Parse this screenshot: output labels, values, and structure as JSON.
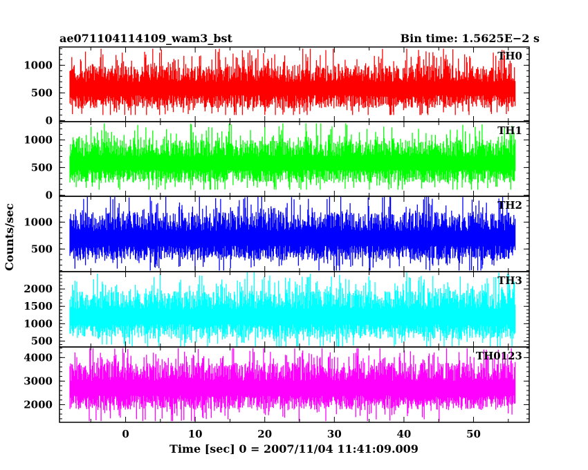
{
  "header": {
    "left_title": "ae071104114109_wam3_bst",
    "right_title": "Bin time: 1.5625E−2 s"
  },
  "chart_data": {
    "type": "line",
    "xlabel": "Time [sec] 0 = 2007/11/04 11:41:09.009",
    "ylabel": "Counts/sec",
    "xlim": [
      -9.5,
      58
    ],
    "xticks": [
      0,
      10,
      20,
      30,
      40,
      50
    ],
    "x_data_range": [
      -8,
      56
    ],
    "panels": [
      {
        "name": "TH0",
        "color": "#ff0000",
        "ylim": [
          -20,
          1330
        ],
        "yticks": [
          0,
          500,
          1000
        ],
        "approx_low": 100,
        "approx_high": 1300,
        "approx_mean": 580
      },
      {
        "name": "TH1",
        "color": "#00ff00",
        "ylim": [
          -20,
          1330
        ],
        "yticks": [
          0,
          500,
          1000
        ],
        "approx_low": 100,
        "approx_high": 1300,
        "approx_mean": 580
      },
      {
        "name": "TH2",
        "color": "#0000ff",
        "ylim": [
          80,
          1480
        ],
        "yticks": [
          500,
          1000
        ],
        "approx_low": 100,
        "approx_high": 1480,
        "approx_mean": 700
      },
      {
        "name": "TH3",
        "color": "#00ffff",
        "ylim": [
          330,
          2500
        ],
        "yticks": [
          500,
          1000,
          1500,
          2000
        ],
        "approx_low": 350,
        "approx_high": 2500,
        "approx_mean": 1200
      },
      {
        "name": "TH0123",
        "color": "#ff00ff",
        "ylim": [
          1250,
          4450
        ],
        "yticks": [
          2000,
          3000,
          4000
        ],
        "approx_low": 1300,
        "approx_high": 4400,
        "approx_mean": 2700
      }
    ]
  }
}
